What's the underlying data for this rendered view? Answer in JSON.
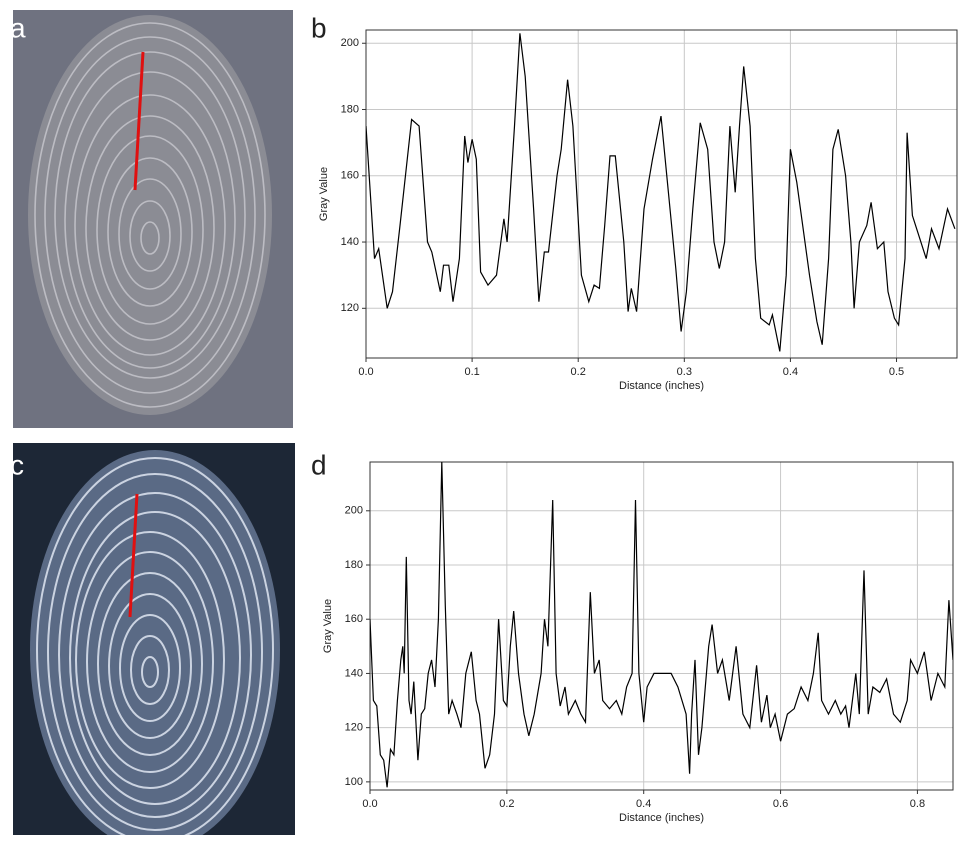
{
  "panel_labels": [
    "a",
    "b",
    "c",
    "d"
  ],
  "chart_data": [
    {
      "type": "line",
      "color": "#000000",
      "grid": true,
      "xlabel": "Distance (inches)",
      "ylabel": "Gray Value",
      "xlim": [
        0,
        0.557
      ],
      "ylim": [
        105,
        204
      ],
      "xticks": [
        {
          "value": 0,
          "label": "0.0"
        },
        0.1,
        0.2,
        0.3,
        0.4,
        0.5
      ],
      "yticks": [
        120,
        140,
        160,
        180,
        200
      ],
      "x": [
        0,
        0.008,
        0.012,
        0.02,
        0.025,
        0.032,
        0.043,
        0.05,
        0.058,
        0.062,
        0.07,
        0.073,
        0.078,
        0.082,
        0.088,
        0.093,
        0.096,
        0.1,
        0.104,
        0.108,
        0.115,
        0.123,
        0.13,
        0.133,
        0.14,
        0.145,
        0.15,
        0.158,
        0.163,
        0.168,
        0.172,
        0.18,
        0.184,
        0.19,
        0.195,
        0.203,
        0.21,
        0.215,
        0.22,
        0.225,
        0.23,
        0.235,
        0.243,
        0.247,
        0.25,
        0.255,
        0.262,
        0.27,
        0.278,
        0.285,
        0.292,
        0.297,
        0.302,
        0.308,
        0.315,
        0.322,
        0.328,
        0.333,
        0.338,
        0.343,
        0.348,
        0.352,
        0.356,
        0.362,
        0.367,
        0.372,
        0.38,
        0.383,
        0.39,
        0.396,
        0.4,
        0.406,
        0.418,
        0.425,
        0.43,
        0.436,
        0.44,
        0.445,
        0.452,
        0.457,
        0.46,
        0.465,
        0.472,
        0.476,
        0.482,
        0.488,
        0.492,
        0.498,
        0.502,
        0.508,
        0.51,
        0.515,
        0.52,
        0.528,
        0.533,
        0.54,
        0.548,
        0.555
      ],
      "values": [
        175,
        135,
        138,
        120,
        125,
        145,
        177,
        175,
        140,
        137,
        125,
        133,
        133,
        122,
        135,
        172,
        164,
        171,
        165,
        131,
        127,
        130,
        147,
        140,
        175,
        203,
        190,
        150,
        122,
        137,
        137,
        160,
        168,
        189,
        175,
        130,
        122,
        127,
        126,
        145,
        166,
        166,
        140,
        119,
        126,
        119,
        150,
        165,
        178,
        155,
        132,
        113,
        125,
        150,
        176,
        168,
        140,
        132,
        140,
        175,
        155,
        175,
        193,
        175,
        135,
        117,
        115,
        118,
        107,
        130,
        168,
        158,
        130,
        116,
        109,
        135,
        168,
        174,
        160,
        140,
        120,
        140,
        145,
        152,
        138,
        140,
        125,
        117,
        115,
        135,
        173,
        148,
        143,
        135,
        144,
        138,
        150,
        144
      ]
    },
    {
      "type": "line",
      "color": "#000000",
      "grid": true,
      "xlabel": "Distance (inches)",
      "ylabel": "Gray Value",
      "xlim": [
        0,
        0.852
      ],
      "ylim": [
        97,
        218
      ],
      "xticks": [
        {
          "value": 0,
          "label": "0.0"
        },
        0.2,
        0.4,
        0.6,
        0.8
      ],
      "yticks": [
        100,
        120,
        140,
        160,
        180,
        200
      ],
      "x": [
        0,
        0.005,
        0.01,
        0.015,
        0.02,
        0.025,
        0.03,
        0.035,
        0.04,
        0.045,
        0.048,
        0.05,
        0.053,
        0.057,
        0.06,
        0.064,
        0.07,
        0.075,
        0.08,
        0.085,
        0.09,
        0.095,
        0.1,
        0.105,
        0.11,
        0.115,
        0.12,
        0.127,
        0.133,
        0.14,
        0.148,
        0.155,
        0.16,
        0.168,
        0.175,
        0.182,
        0.188,
        0.195,
        0.2,
        0.205,
        0.21,
        0.217,
        0.225,
        0.232,
        0.24,
        0.25,
        0.255,
        0.26,
        0.267,
        0.272,
        0.278,
        0.285,
        0.29,
        0.3,
        0.308,
        0.315,
        0.322,
        0.328,
        0.335,
        0.34,
        0.35,
        0.36,
        0.368,
        0.375,
        0.383,
        0.388,
        0.393,
        0.4,
        0.405,
        0.415,
        0.43,
        0.44,
        0.45,
        0.462,
        0.467,
        0.47,
        0.475,
        0.48,
        0.485,
        0.495,
        0.5,
        0.508,
        0.515,
        0.525,
        0.535,
        0.545,
        0.555,
        0.565,
        0.572,
        0.58,
        0.585,
        0.592,
        0.6,
        0.61,
        0.62,
        0.63,
        0.64,
        0.648,
        0.655,
        0.66,
        0.67,
        0.68,
        0.688,
        0.695,
        0.7,
        0.71,
        0.715,
        0.722,
        0.728,
        0.735,
        0.745,
        0.755,
        0.765,
        0.775,
        0.785,
        0.79,
        0.8,
        0.81,
        0.82,
        0.83,
        0.84,
        0.846,
        0.852
      ],
      "values": [
        160,
        130,
        128,
        110,
        108,
        98,
        112,
        110,
        130,
        145,
        150,
        140,
        183,
        130,
        125,
        137,
        108,
        125,
        127,
        140,
        145,
        135,
        160,
        218,
        165,
        125,
        130,
        125,
        120,
        140,
        148,
        130,
        125,
        105,
        110,
        125,
        160,
        130,
        128,
        150,
        163,
        140,
        125,
        117,
        125,
        140,
        160,
        150,
        204,
        140,
        128,
        135,
        125,
        130,
        125,
        122,
        170,
        140,
        145,
        130,
        127,
        130,
        125,
        135,
        140,
        204,
        140,
        122,
        135,
        140,
        140,
        140,
        135,
        125,
        103,
        125,
        145,
        110,
        120,
        150,
        158,
        140,
        145,
        130,
        150,
        125,
        120,
        143,
        122,
        132,
        120,
        125,
        115,
        125,
        127,
        135,
        130,
        140,
        155,
        130,
        125,
        130,
        125,
        128,
        120,
        140,
        125,
        178,
        125,
        135,
        133,
        138,
        125,
        122,
        130,
        145,
        140,
        148,
        130,
        140,
        135,
        167,
        145
      ]
    }
  ]
}
